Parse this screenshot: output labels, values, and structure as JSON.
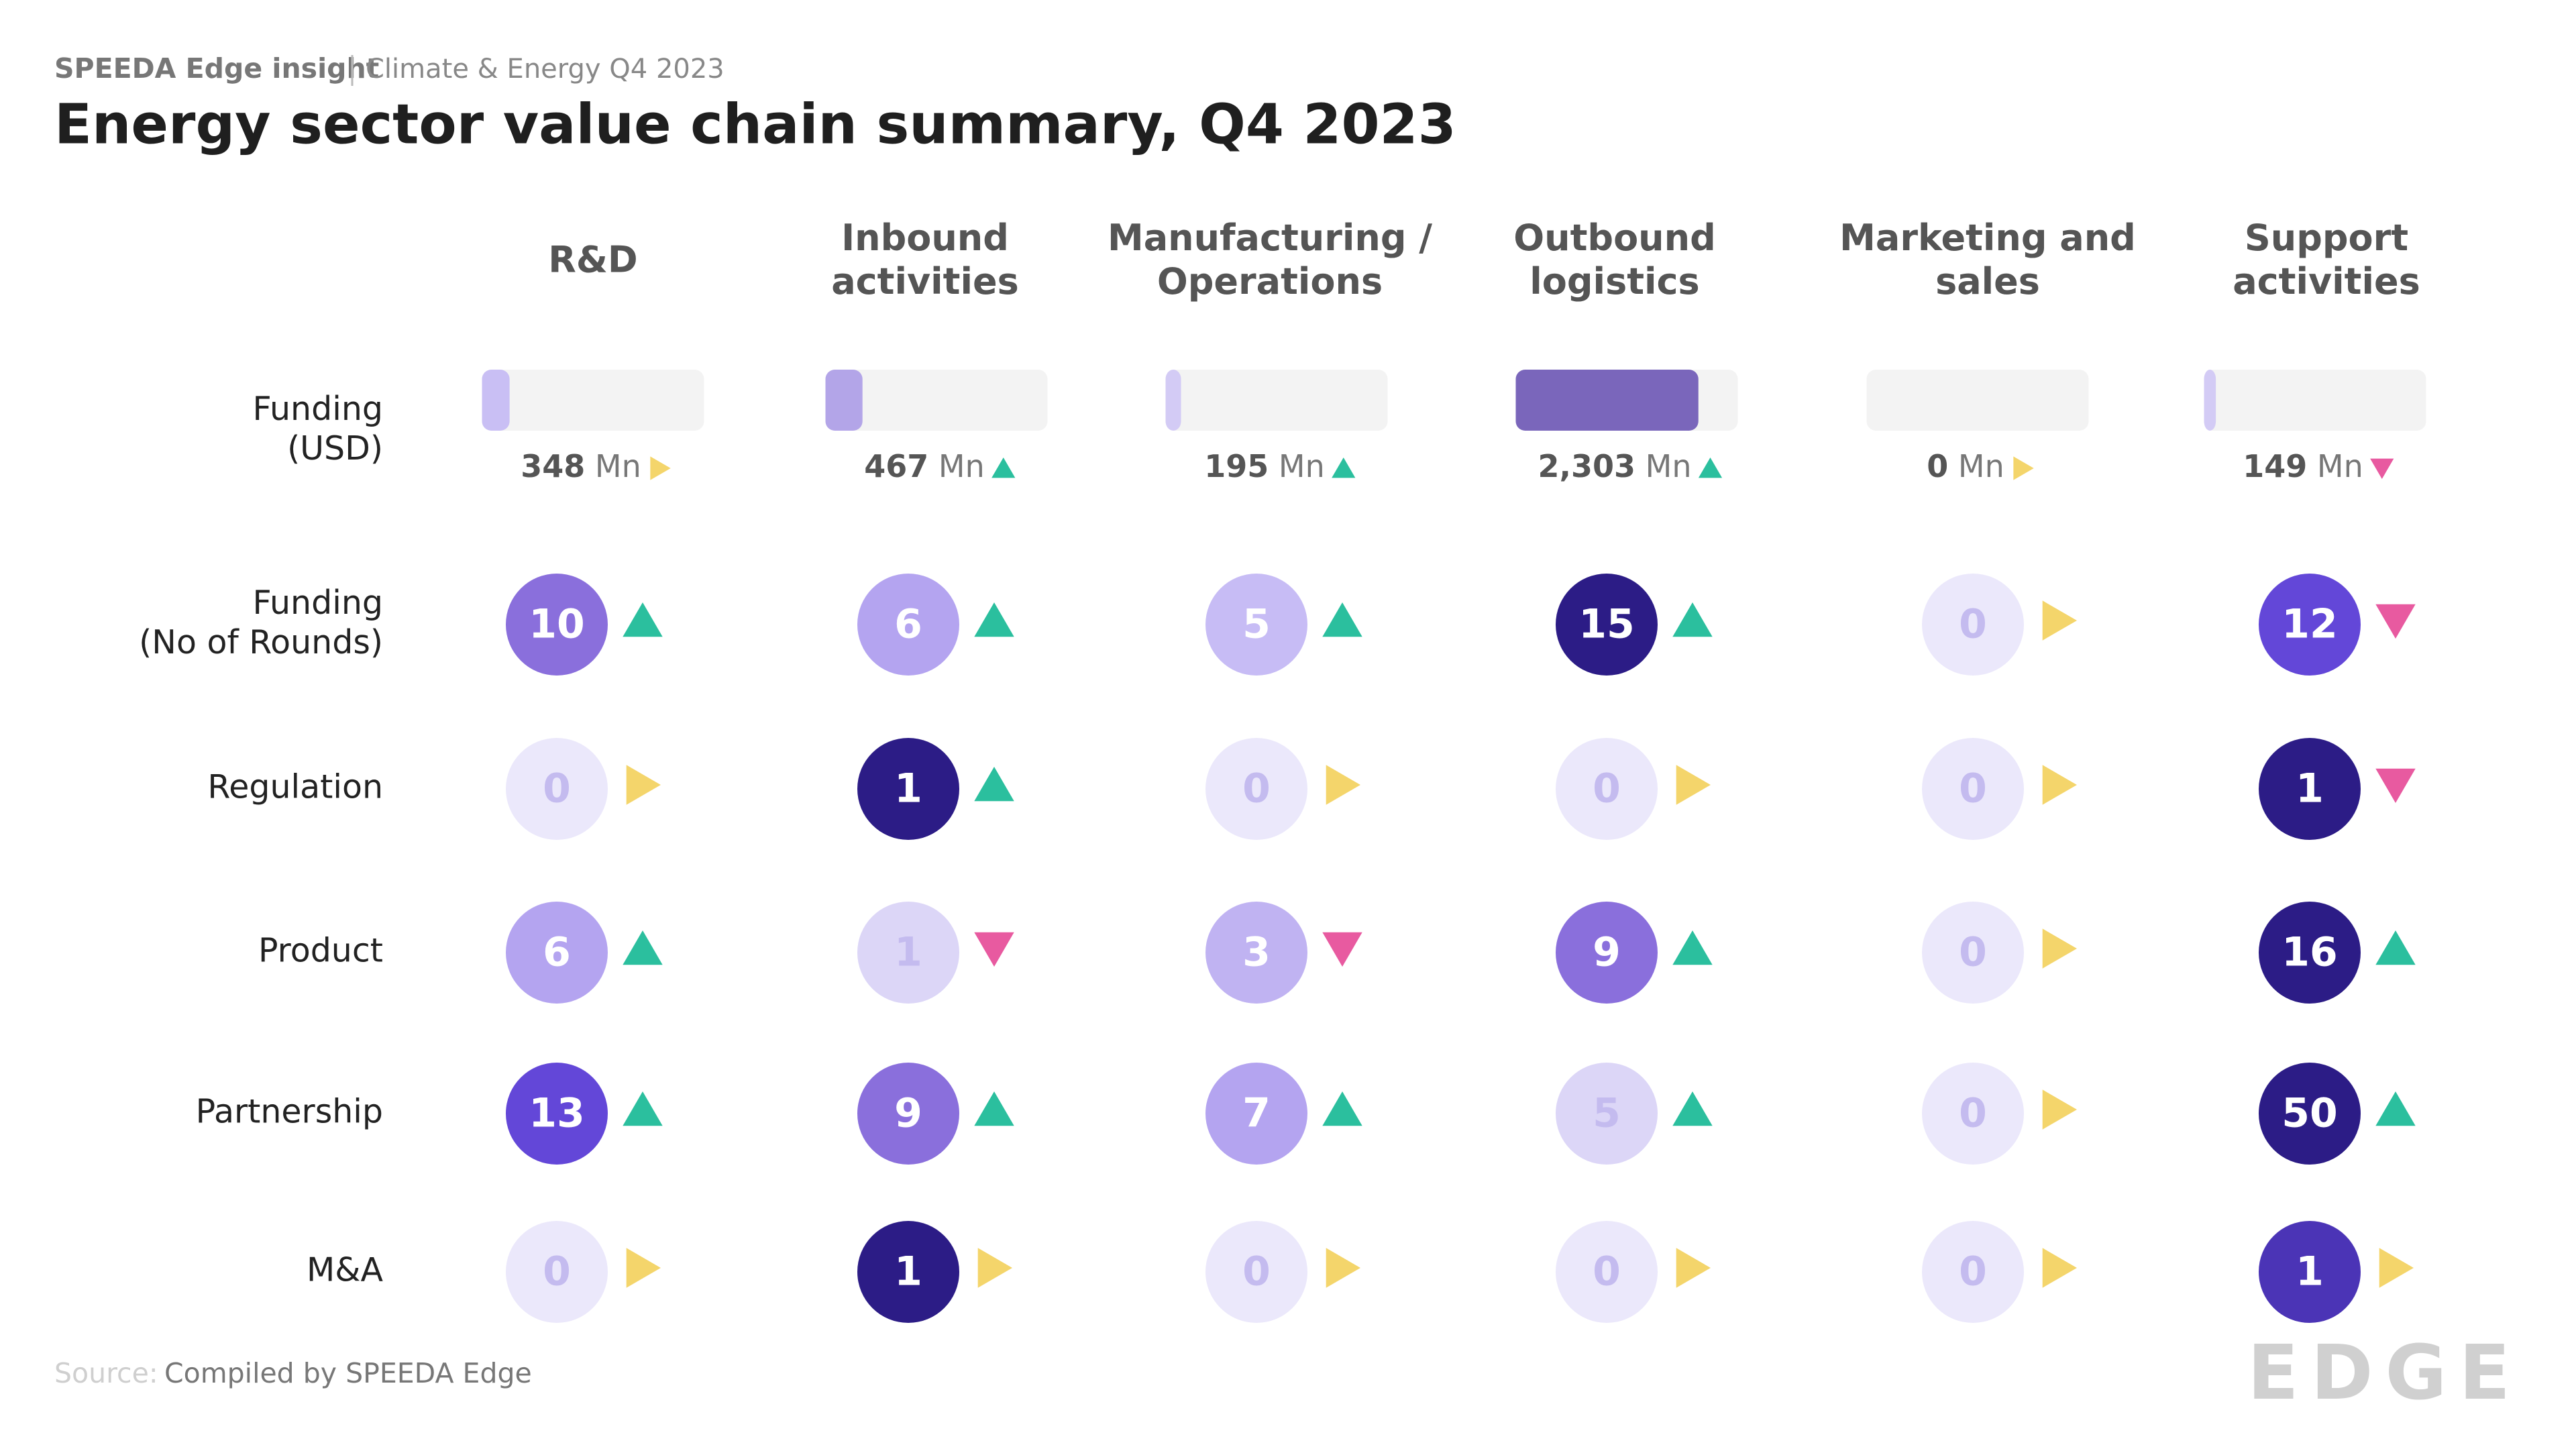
{
  "header": {
    "brand": "SPEEDA Edge insight",
    "subtitle": "Climate & Energy Q4 2023",
    "title": "Energy sector value chain summary, Q4 2023"
  },
  "columns": [
    [
      "R&D"
    ],
    [
      "Inbound",
      "activities"
    ],
    [
      "Manufacturing /",
      "Operations"
    ],
    [
      "Outbound",
      "logistics"
    ],
    [
      "Marketing and",
      "sales"
    ],
    [
      "Support",
      "activities"
    ]
  ],
  "funding": {
    "label": [
      "Funding",
      "(USD)"
    ],
    "values": [
      348,
      467,
      195,
      2303,
      0,
      149
    ],
    "value_labels": [
      "348",
      "467",
      "195",
      "2,303",
      "0",
      "149"
    ],
    "unit": "Mn",
    "xlim": [
      0,
      2800
    ],
    "colors": [
      "#c9bff4",
      "#b3a5e8",
      "#d3cbf5",
      "#7a66bb",
      "#d3cbf5",
      "#d3cbf5"
    ],
    "trends": [
      "flat",
      "up",
      "up",
      "up",
      "flat",
      "down"
    ]
  },
  "rows": [
    {
      "label": [
        "Funding",
        "(No of Rounds)"
      ],
      "values": [
        10,
        6,
        5,
        15,
        0,
        12
      ],
      "colors": [
        "#8a6fdc",
        "#b4a4f0",
        "#c7bcf5",
        "#2c1c86",
        "#ebe8fb",
        "#6347d8"
      ],
      "trends": [
        "up",
        "up",
        "up",
        "up",
        "flat",
        "down"
      ]
    },
    {
      "label": [
        "Regulation"
      ],
      "values": [
        0,
        1,
        0,
        0,
        0,
        1
      ],
      "colors": [
        "#ebe8fb",
        "#2c1c86",
        "#ebe8fb",
        "#ebe8fb",
        "#ebe8fb",
        "#2c1c86"
      ],
      "trends": [
        "flat",
        "up",
        "flat",
        "flat",
        "flat",
        "down"
      ]
    },
    {
      "label": [
        "Product"
      ],
      "values": [
        6,
        1,
        3,
        9,
        0,
        16
      ],
      "colors": [
        "#b4a4f0",
        "#dcd6f7",
        "#c0b3f2",
        "#8a6fdc",
        "#ebe8fb",
        "#2c1c86"
      ],
      "trends": [
        "up",
        "down",
        "down",
        "up",
        "flat",
        "up"
      ]
    },
    {
      "label": [
        "Partnership"
      ],
      "values": [
        13,
        9,
        7,
        5,
        0,
        50
      ],
      "colors": [
        "#6347d8",
        "#8a6fdc",
        "#b4a4f0",
        "#dcd6f7",
        "#ebe8fb",
        "#2c1c86"
      ],
      "trends": [
        "up",
        "up",
        "up",
        "up",
        "flat",
        "up"
      ]
    },
    {
      "label": [
        "M&A"
      ],
      "values": [
        0,
        1,
        0,
        0,
        0,
        1
      ],
      "colors": [
        "#ebe8fb",
        "#2c1c86",
        "#ebe8fb",
        "#ebe8fb",
        "#ebe8fb",
        "#4b34b6"
      ],
      "trends": [
        "flat",
        "flat",
        "flat",
        "flat",
        "flat",
        "flat"
      ]
    }
  ],
  "trend_colors": {
    "up": "#2bbf9e",
    "down": "#e85aa0",
    "flat": "#f4d56b"
  },
  "footer": {
    "source_label": "Source:",
    "source": "Compiled by SPEEDA Edge",
    "logo": "EDGE"
  }
}
